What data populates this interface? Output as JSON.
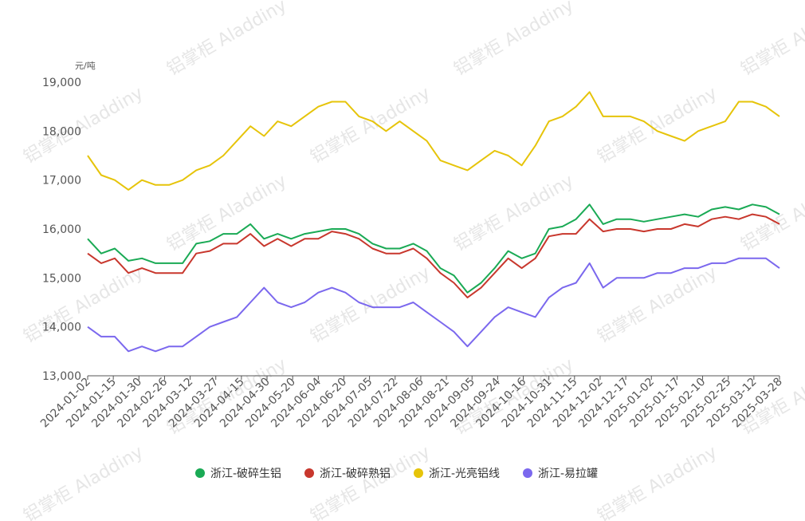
{
  "watermark": "铝掌柜 Aladdiny",
  "chart_data": {
    "type": "line",
    "title": "",
    "unit_label": "元/吨",
    "ylim": [
      13000,
      19000
    ],
    "y_ticks": [
      "13,000",
      "14,000",
      "15,000",
      "16,000",
      "17,000",
      "18,000",
      "19,000"
    ],
    "x_tick_labels": [
      "2024-01-02",
      "2024-01-15",
      "2024-01-30",
      "2024-02-26",
      "2024-03-12",
      "2024-03-27",
      "2024-04-15",
      "2024-04-30",
      "2024-05-20",
      "2024-06-04",
      "2024-06-20",
      "2024-07-05",
      "2024-07-22",
      "2024-08-06",
      "2024-08-21",
      "2024-09-05",
      "2024-09-24",
      "2024-10-16",
      "2024-10-31",
      "2024-11-15",
      "2024-12-02",
      "2024-12-17",
      "2025-01-02",
      "2025-01-17",
      "2025-02-10",
      "2025-02-25",
      "2025-03-12",
      "2025-03-28"
    ],
    "grid": false,
    "legend_position": "bottom-center",
    "series": [
      {
        "name": "浙江-破碎生铝",
        "color": "#1aaa55",
        "values": [
          15800,
          15500,
          15600,
          15350,
          15400,
          15300,
          15300,
          15300,
          15700,
          15750,
          15900,
          15900,
          16100,
          15800,
          15900,
          15800,
          15900,
          15950,
          16000,
          16000,
          15900,
          15700,
          15600,
          15600,
          15700,
          15550,
          15200,
          15050,
          14700,
          14900,
          15200,
          15550,
          15400,
          15500,
          16000,
          16050,
          16200,
          16500,
          16100,
          16200,
          16200,
          16150,
          16200,
          16250,
          16300,
          16250,
          16400,
          16450,
          16400,
          16500,
          16450,
          16300
        ]
      },
      {
        "name": "浙江-破碎熟铝",
        "color": "#c8372d",
        "values": [
          15500,
          15300,
          15400,
          15100,
          15200,
          15100,
          15100,
          15100,
          15500,
          15550,
          15700,
          15700,
          15900,
          15650,
          15800,
          15650,
          15800,
          15800,
          15950,
          15900,
          15800,
          15600,
          15500,
          15500,
          15600,
          15400,
          15100,
          14900,
          14600,
          14800,
          15100,
          15400,
          15200,
          15400,
          15850,
          15900,
          15900,
          16200,
          15950,
          16000,
          16000,
          15950,
          16000,
          16000,
          16100,
          16050,
          16200,
          16250,
          16200,
          16300,
          16250,
          16100
        ]
      },
      {
        "name": "浙江-光亮铝线",
        "color": "#e6c40a",
        "values": [
          17500,
          17100,
          17000,
          16800,
          17000,
          16900,
          16900,
          17000,
          17200,
          17300,
          17500,
          17800,
          18100,
          17900,
          18200,
          18100,
          18300,
          18500,
          18600,
          18600,
          18300,
          18200,
          18000,
          18200,
          18000,
          17800,
          17400,
          17300,
          17200,
          17400,
          17600,
          17500,
          17300,
          17700,
          18200,
          18300,
          18500,
          18800,
          18300,
          18300,
          18300,
          18200,
          18000,
          17900,
          17800,
          18000,
          18100,
          18200,
          18600,
          18600,
          18500,
          18300
        ]
      },
      {
        "name": "浙江-易拉罐",
        "color": "#7b68ee",
        "values": [
          14000,
          13800,
          13800,
          13500,
          13600,
          13500,
          13600,
          13600,
          13800,
          14000,
          14100,
          14200,
          14500,
          14800,
          14500,
          14400,
          14500,
          14700,
          14800,
          14700,
          14500,
          14400,
          14400,
          14400,
          14500,
          14300,
          14100,
          13900,
          13600,
          13900,
          14200,
          14400,
          14300,
          14200,
          14600,
          14800,
          14900,
          15300,
          14800,
          15000,
          15000,
          15000,
          15100,
          15100,
          15200,
          15200,
          15300,
          15300,
          15400,
          15400,
          15400,
          15200
        ]
      }
    ]
  }
}
